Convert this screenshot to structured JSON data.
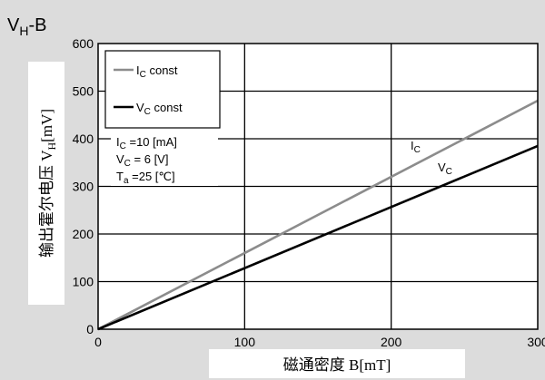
{
  "chart_data": {
    "type": "line",
    "title": "V_H-B",
    "title_main": "V",
    "title_sub": "H",
    "title_tail": "-B",
    "xlabel": "磁通密度 B[mT]",
    "ylabel_main": "输出霍尔电压 V",
    "ylabel_sub": "H",
    "ylabel_tail": "[mV]",
    "xlim": [
      0,
      300
    ],
    "ylim": [
      0,
      600
    ],
    "xticks": [
      0,
      100,
      200,
      300
    ],
    "yticks": [
      0,
      100,
      200,
      300,
      400,
      500,
      600
    ],
    "xtick_labels": [
      "0",
      "100",
      "200",
      "300"
    ],
    "ytick_labels": [
      "0",
      "100",
      "200",
      "300",
      "400",
      "500",
      "600"
    ],
    "grid": true,
    "legend_position": "top-left",
    "series": [
      {
        "name": "I_C const",
        "name_main": "I",
        "name_sub": "C",
        "name_tail": " const",
        "line_label_main": "I",
        "line_label_sub": "C",
        "color": "#8c8c8c",
        "x": [
          0,
          300
        ],
        "y": [
          0,
          480
        ]
      },
      {
        "name": "V_C const",
        "name_main": "V",
        "name_sub": "C",
        "name_tail": " const",
        "line_label_main": "V",
        "line_label_sub": "C",
        "color": "#000000",
        "x": [
          0,
          300
        ],
        "y": [
          0,
          385
        ]
      }
    ],
    "conditions": [
      {
        "main": "I",
        "sub": "C",
        "tail": " =10 [mA]"
      },
      {
        "main": "V",
        "sub": "C",
        "tail": " = 6  [V]"
      },
      {
        "main": "T",
        "sub": "a",
        "tail": " =25 [℃]"
      }
    ]
  }
}
